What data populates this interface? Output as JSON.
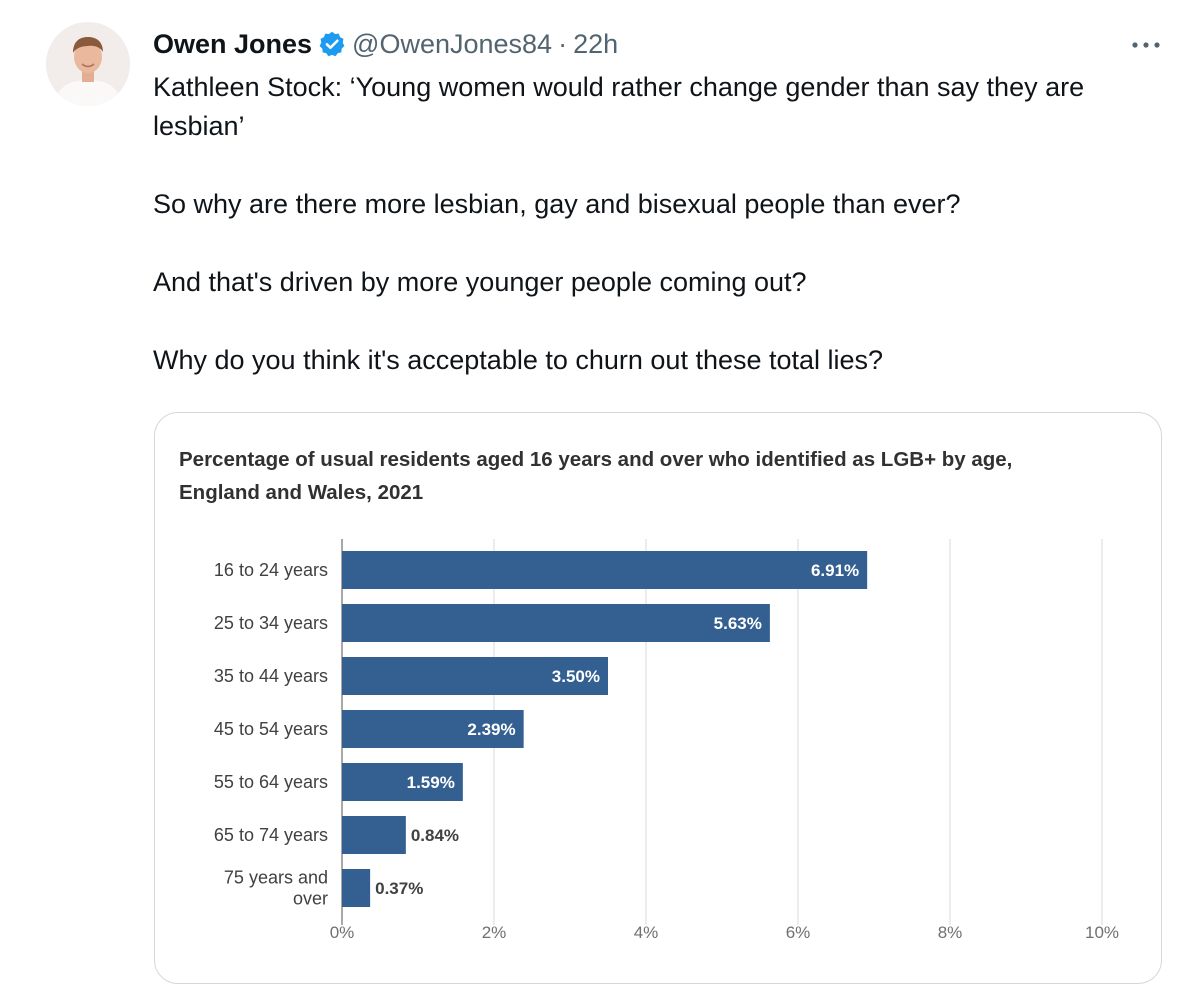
{
  "tweet": {
    "author_name": "Owen Jones",
    "handle": "@OwenJones84",
    "separator": "·",
    "time": "22h",
    "more_label": "•••",
    "avatar_icon": "person-avatar",
    "verified_icon": "verified-badge-icon",
    "verified_color": "#1d9bf0",
    "paragraphs": [
      "Kathleen Stock: ‘Young women would rather change gender than say they are lesbian’",
      "So why are there more lesbian, gay and bisexual people than ever?",
      "And that's driven by more younger people coming out?",
      "Why do you think it's acceptable to churn out these total lies?"
    ]
  },
  "chart_data": {
    "type": "bar",
    "orientation": "horizontal",
    "title": "Percentage of usual residents aged 16 years and over who identified as LGB+ by age, England and Wales, 2021",
    "categories": [
      "16 to 24 years",
      "25 to 34 years",
      "35 to 44 years",
      "45 to 54 years",
      "55 to 64 years",
      "65 to 74 years",
      "75 years and over"
    ],
    "category_lines": [
      [
        "16 to 24 years"
      ],
      [
        "25 to 34 years"
      ],
      [
        "35 to 44 years"
      ],
      [
        "45 to 54 years"
      ],
      [
        "55 to 64 years"
      ],
      [
        "65 to 74 years"
      ],
      [
        "75 years and",
        "over"
      ]
    ],
    "values": [
      6.91,
      5.63,
      3.5,
      2.39,
      1.59,
      0.84,
      0.37
    ],
    "data_labels": [
      "6.91%",
      "5.63%",
      "3.50%",
      "2.39%",
      "1.59%",
      "0.84%",
      "0.37%"
    ],
    "xlim": [
      0,
      10
    ],
    "xticks": [
      0,
      2,
      4,
      6,
      8,
      10
    ],
    "xtick_labels": [
      "0%",
      "2%",
      "4%",
      "6%",
      "8%",
      "10%"
    ],
    "bar_color": "#335f91",
    "grid": true,
    "legend": "none"
  }
}
